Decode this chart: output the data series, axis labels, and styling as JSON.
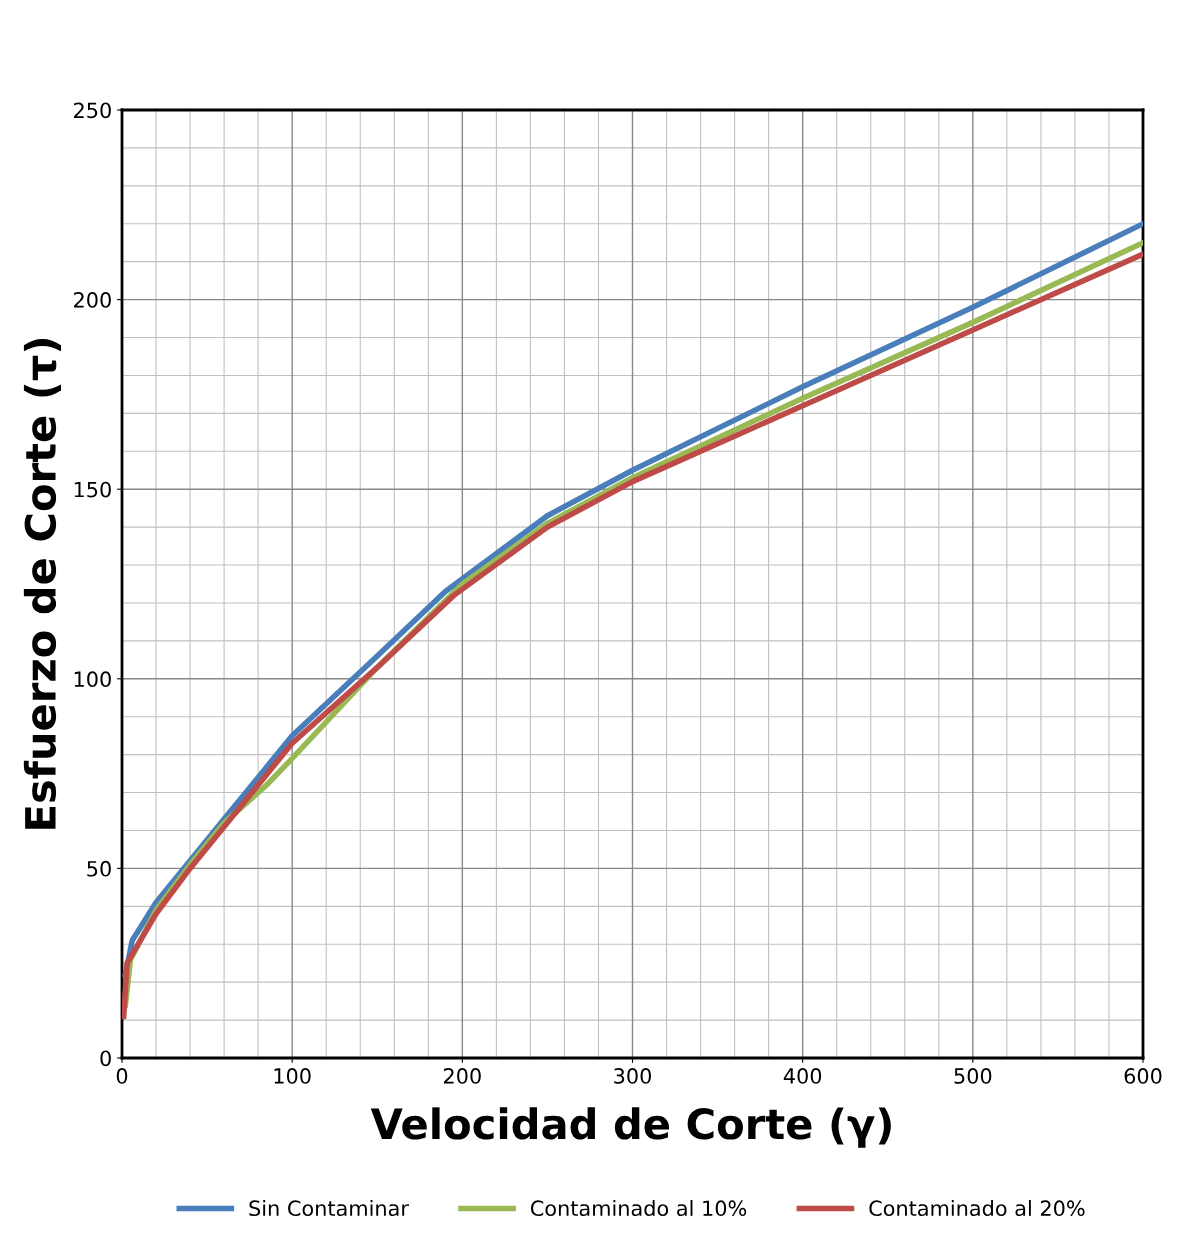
{
  "chart_data": {
    "type": "line",
    "xlabel": "Velocidad de Corte (γ)",
    "ylabel": "Esfuerzo de Corte (τ)",
    "xlim": [
      0,
      600
    ],
    "xticks": [
      0,
      100,
      200,
      300,
      400,
      500,
      600
    ],
    "ylim": [
      0,
      250
    ],
    "yticks": [
      0,
      50,
      100,
      150,
      200,
      250
    ],
    "grid": true,
    "legend": "bottom",
    "marker": "none",
    "line_style": "solid",
    "series": [
      {
        "name": "Sin Contaminar",
        "color": "#4a7ebb",
        "x": [
          2,
          6,
          20,
          40,
          60,
          80,
          100,
          150,
          190,
          250,
          300,
          400,
          500,
          600
        ],
        "values": [
          22,
          31,
          41,
          52,
          63,
          74,
          85,
          106,
          123,
          143,
          155,
          177,
          198,
          220
        ]
      },
      {
        "name": "Contaminado al 10%",
        "color": "#98b954",
        "x": [
          2,
          5,
          20,
          40,
          60,
          85,
          100,
          150,
          200,
          250,
          300,
          400,
          500,
          600
        ],
        "values": [
          14,
          26,
          39,
          51,
          62,
          72,
          79,
          103,
          125,
          141,
          153,
          174,
          194,
          215
        ]
      },
      {
        "name": "Contaminado al 20%",
        "color": "#be4b48",
        "x": [
          1,
          3,
          20,
          40,
          60,
          80,
          100,
          150,
          195,
          250,
          300,
          400,
          500,
          600
        ],
        "values": [
          11,
          25,
          38,
          50,
          61,
          72,
          83,
          103,
          122,
          140,
          152,
          172,
          192,
          212
        ]
      }
    ]
  }
}
